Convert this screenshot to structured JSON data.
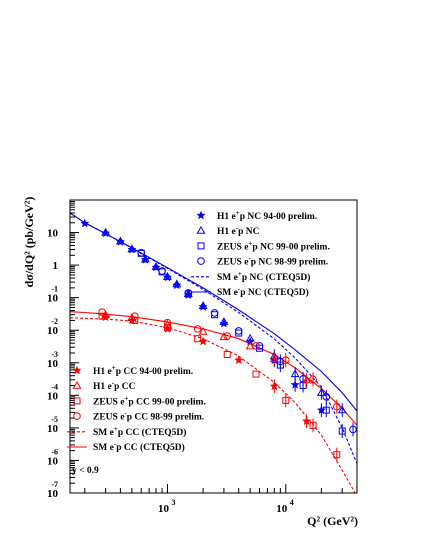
{
  "chart_data": {
    "type": "scatter",
    "xlabel": "Q² (GeV²)",
    "ylabel": "dσ/dQ² (pb/GeV²)",
    "xscale": "log",
    "yscale": "log",
    "xlim": [
      150,
      40000
    ],
    "ylim": [
      1e-07,
      100
    ],
    "x_ticks": [
      {
        "base": "10",
        "exp": "3"
      },
      {
        "base": "10",
        "exp": "4"
      }
    ],
    "y_ticks": [
      {
        "base": "10",
        "exp": "",
        "value": 10
      },
      {
        "base": "1",
        "exp": "",
        "value": 1
      },
      {
        "base": "10",
        "exp": "-1",
        "value": 0.1
      },
      {
        "base": "10",
        "exp": "-2",
        "value": 0.01
      },
      {
        "base": "10",
        "exp": "-3",
        "value": 0.001
      },
      {
        "base": "10",
        "exp": "-4",
        "value": 0.0001
      },
      {
        "base": "10",
        "exp": "-5",
        "value": 1e-05
      },
      {
        "base": "10",
        "exp": "-6",
        "value": 1e-06
      },
      {
        "base": "10",
        "exp": "-7",
        "value": 1e-07
      }
    ],
    "annotation": "y < 0.9",
    "legend_nc_placement": "top-right",
    "legend_cc_placement": "bottom-left",
    "legend_nc": [
      {
        "parts": [
          [
            "H1 e",
            ""
          ],
          [
            "+",
            "sup"
          ],
          [
            "p NC 94-00 prelim.",
            ""
          ]
        ],
        "marker": "star",
        "color": "#0000ff"
      },
      {
        "parts": [
          [
            "H1 e",
            ""
          ],
          [
            "-",
            "sup"
          ],
          [
            "p NC",
            ""
          ]
        ],
        "marker": "triangle",
        "color": "#0000ff"
      },
      {
        "parts": [
          [
            "ZEUS e",
            ""
          ],
          [
            "+",
            "sup"
          ],
          [
            "p NC 99-00 prelim.",
            ""
          ]
        ],
        "marker": "square",
        "color": "#0000ff"
      },
      {
        "parts": [
          [
            "ZEUS e",
            ""
          ],
          [
            "-",
            "sup"
          ],
          [
            "p NC 98-99 prelim.",
            ""
          ]
        ],
        "marker": "circle",
        "color": "#0000ff"
      },
      {
        "parts": [
          [
            "SM e",
            ""
          ],
          [
            "+",
            "sup"
          ],
          [
            "p NC (CTEQ5D)",
            ""
          ]
        ],
        "marker": "dashed",
        "color": "#0000ff"
      },
      {
        "parts": [
          [
            "SM e",
            ""
          ],
          [
            "-",
            "sup"
          ],
          [
            "p NC (CTEQ5D)",
            ""
          ]
        ],
        "marker": "solid",
        "color": "#0000ff"
      }
    ],
    "legend_cc": [
      {
        "parts": [
          [
            "H1 e",
            ""
          ],
          [
            "+",
            "sup"
          ],
          [
            "p CC 94-00 prelim.",
            ""
          ]
        ],
        "marker": "star",
        "color": "#ff0000"
      },
      {
        "parts": [
          [
            "H1 e",
            ""
          ],
          [
            "-",
            "sup"
          ],
          [
            "p CC",
            ""
          ]
        ],
        "marker": "triangle",
        "color": "#ff0000"
      },
      {
        "parts": [
          [
            "ZEUS e",
            ""
          ],
          [
            "+",
            "sup"
          ],
          [
            "p CC 99-00 prelim.",
            ""
          ]
        ],
        "marker": "square",
        "color": "#ff0000"
      },
      {
        "parts": [
          [
            "ZEUS e",
            ""
          ],
          [
            "-",
            "sup"
          ],
          [
            "p CC 98-99 prelim.",
            ""
          ]
        ],
        "marker": "circle",
        "color": "#ff0000"
      },
      {
        "parts": [
          [
            "SM e",
            ""
          ],
          [
            "+",
            "sup"
          ],
          [
            "p CC (CTEQ5D)",
            ""
          ]
        ],
        "marker": "dashed",
        "color": "#ff0000"
      },
      {
        "parts": [
          [
            "SM e",
            ""
          ],
          [
            "-",
            "sup"
          ],
          [
            "p CC (CTEQ5D)",
            ""
          ]
        ],
        "marker": "solid",
        "color": "#ff0000"
      }
    ],
    "series": [
      {
        "name": "H1 e+p NC 94-00 prelim.",
        "marker": "star",
        "color": "#0000ff",
        "x": [
          200,
          300,
          400,
          500,
          650,
          800,
          1000,
          1200,
          1500,
          2000,
          3000,
          5000,
          8000,
          12000,
          20000
        ],
        "y": [
          19,
          9.5,
          5.2,
          3.0,
          1.45,
          0.85,
          0.42,
          0.24,
          0.12,
          0.052,
          0.016,
          0.0045,
          0.0012,
          0.00021,
          3.5e-05
        ]
      },
      {
        "name": "H1 e-p NC",
        "marker": "triangle",
        "color": "#0000ff",
        "x": [
          300,
          400,
          500,
          650,
          800,
          1000,
          1200,
          1500,
          2000,
          3000,
          5000,
          8000,
          12000,
          20000,
          30000
        ],
        "y": [
          10,
          5.4,
          3.1,
          1.5,
          0.88,
          0.44,
          0.26,
          0.13,
          0.056,
          0.018,
          0.0055,
          0.0016,
          0.00045,
          0.00012,
          3.5e-05
        ]
      },
      {
        "name": "ZEUS e+p NC 99-00 prelim.",
        "marker": "square",
        "color": "#0000ff",
        "x": [
          600,
          900,
          1500,
          2500,
          4000,
          6000,
          9000,
          14000,
          22000,
          30000
        ],
        "y": [
          2.3,
          0.62,
          0.13,
          0.03,
          0.0082,
          0.0028,
          0.00085,
          0.0002,
          3.5e-05,
          8e-06
        ]
      },
      {
        "name": "ZEUS e-p NC 98-99 prelim.",
        "marker": "circle",
        "color": "#0000ff",
        "x": [
          600,
          900,
          1500,
          2500,
          4000,
          6000,
          9000,
          14000,
          22000,
          37000
        ],
        "y": [
          2.4,
          0.66,
          0.14,
          0.034,
          0.0095,
          0.0033,
          0.0011,
          0.00032,
          9e-05,
          9e-06
        ]
      },
      {
        "name": "H1 e+p CC 94-00 prelim.",
        "marker": "star",
        "color": "#ff0000",
        "x": [
          300,
          500,
          1000,
          2000,
          4000,
          8000,
          15000
        ],
        "y": [
          0.025,
          0.02,
          0.011,
          0.0045,
          0.0012,
          0.00019,
          1.6e-05
        ]
      },
      {
        "name": "H1 e-p CC",
        "marker": "triangle",
        "color": "#ff0000",
        "x": [
          300,
          500,
          1000,
          2000,
          3000,
          5000,
          8000,
          15000
        ],
        "y": [
          0.029,
          0.024,
          0.015,
          0.009,
          0.0062,
          0.0032,
          0.0013,
          0.00029
        ]
      },
      {
        "name": "ZEUS e+p CC 99-00 prelim.",
        "marker": "square",
        "color": "#ff0000",
        "x": [
          280,
          530,
          1000,
          1800,
          3200,
          5600,
          10000,
          17000,
          27000
        ],
        "y": [
          0.027,
          0.02,
          0.012,
          0.0055,
          0.0018,
          0.00045,
          7e-05,
          1.2e-05,
          1.5e-06
        ]
      },
      {
        "name": "ZEUS e-p CC 98-99 prelim.",
        "marker": "circle",
        "color": "#ff0000",
        "x": [
          280,
          530,
          1000,
          1800,
          3200,
          5600,
          10000,
          17000,
          27000
        ],
        "y": [
          0.036,
          0.027,
          0.017,
          0.011,
          0.0066,
          0.0033,
          0.0012,
          0.00031,
          4.5e-05
        ]
      },
      {
        "name": "SM e+p NC (CTEQ5D)",
        "style": "dashed",
        "color": "#0000ff",
        "x": [
          150,
          200,
          300,
          500,
          1000,
          2000,
          4000,
          8000,
          12000,
          20000,
          30000,
          40000
        ],
        "y": [
          40,
          20,
          9.2,
          3.3,
          0.8,
          0.18,
          0.035,
          0.0054,
          0.0014,
          0.00018,
          1e-05,
          8e-07
        ]
      },
      {
        "name": "SM e-p NC (CTEQ5D)",
        "style": "solid",
        "color": "#0000ff",
        "x": [
          150,
          200,
          300,
          500,
          1000,
          2000,
          4000,
          8000,
          12000,
          20000,
          30000,
          40000
        ],
        "y": [
          40,
          20,
          9.3,
          3.4,
          0.83,
          0.2,
          0.042,
          0.0078,
          0.0025,
          0.00054,
          0.00012,
          3.3e-05
        ]
      },
      {
        "name": "SM e+p CC (CTEQ5D)",
        "style": "dashed",
        "color": "#ff0000",
        "x": [
          150,
          200,
          300,
          500,
          1000,
          2000,
          4000,
          8000,
          12000,
          20000,
          30000,
          40000
        ],
        "y": [
          0.024,
          0.023,
          0.022,
          0.019,
          0.012,
          0.0055,
          0.0016,
          0.00025,
          6e-05,
          6e-06,
          5e-07,
          8e-08
        ]
      },
      {
        "name": "SM e-p CC (CTEQ5D)",
        "style": "solid",
        "color": "#ff0000",
        "x": [
          150,
          200,
          300,
          500,
          1000,
          2000,
          4000,
          8000,
          12000,
          20000,
          30000,
          40000
        ],
        "y": [
          0.037,
          0.035,
          0.031,
          0.026,
          0.018,
          0.011,
          0.0055,
          0.0018,
          0.0007,
          0.00016,
          4e-05,
          1.2e-05
        ]
      }
    ]
  }
}
